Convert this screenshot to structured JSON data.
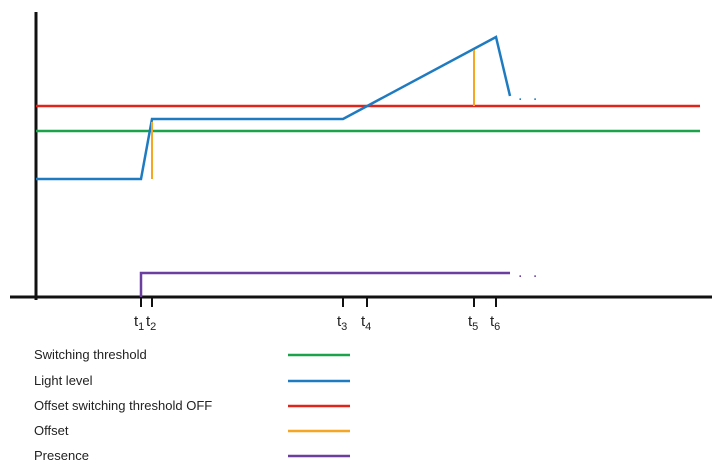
{
  "chart_data": {
    "type": "line",
    "description_free": true,
    "x_ticks": [
      {
        "base": "t",
        "sub": "1"
      },
      {
        "base": "t",
        "sub": "2"
      },
      {
        "base": "t",
        "sub": "3"
      },
      {
        "base": "t",
        "sub": "4"
      },
      {
        "base": "t",
        "sub": "5"
      },
      {
        "base": "t",
        "sub": "6"
      }
    ],
    "ellipsis": ". .",
    "legend": [
      {
        "label": "Switching threshold",
        "color": "#1aa34a"
      },
      {
        "label": "Light level",
        "color": "#1f7bc1"
      },
      {
        "label": "Offset switching threshold OFF",
        "color": "#e2231a"
      },
      {
        "label": "Offset",
        "color": "#f5a623"
      },
      {
        "label": "Presence",
        "color": "#6a3fa0"
      }
    ]
  }
}
